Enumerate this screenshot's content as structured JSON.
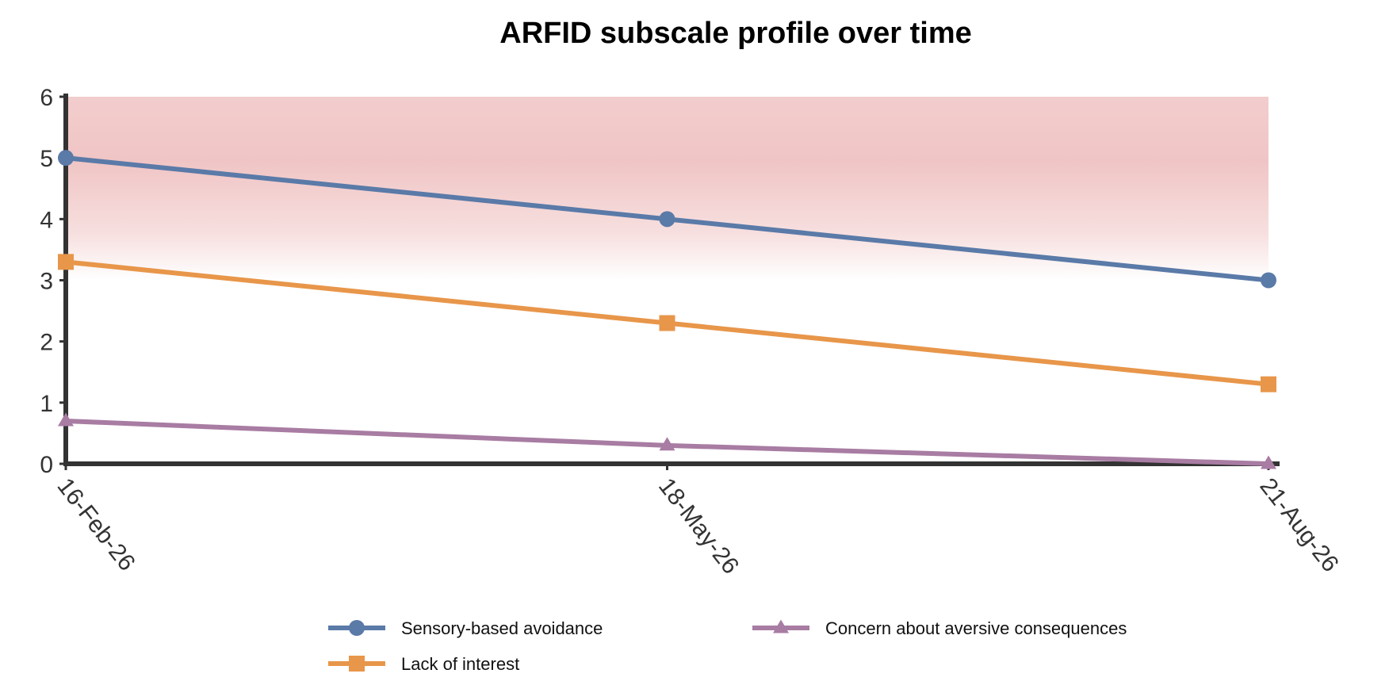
{
  "chart_data": {
    "type": "line",
    "title": "ARFID subscale profile over time",
    "xlabel": "",
    "ylabel": "",
    "categories": [
      "16-Feb-26",
      "18-May-26",
      "21-Aug-26"
    ],
    "ylim": [
      0,
      6
    ],
    "yticks": [
      "0",
      "1",
      "2",
      "3",
      "4",
      "5",
      "6"
    ],
    "shaded_band": {
      "from": 3,
      "to": 6,
      "color": "#e8a5a5"
    },
    "series": [
      {
        "name": "Sensory-based avoidance",
        "values": [
          5,
          4,
          3
        ],
        "color": "#5a7aa8",
        "marker": "circle"
      },
      {
        "name": "Lack of interest",
        "values": [
          3.3,
          2.3,
          1.3
        ],
        "color": "#e8964a",
        "marker": "square"
      },
      {
        "name": "Concern about aversive consequences",
        "values": [
          0.7,
          0.3,
          0
        ],
        "color": "#a87ca3",
        "marker": "triangle"
      }
    ],
    "legend": "bottom",
    "grid": false
  }
}
